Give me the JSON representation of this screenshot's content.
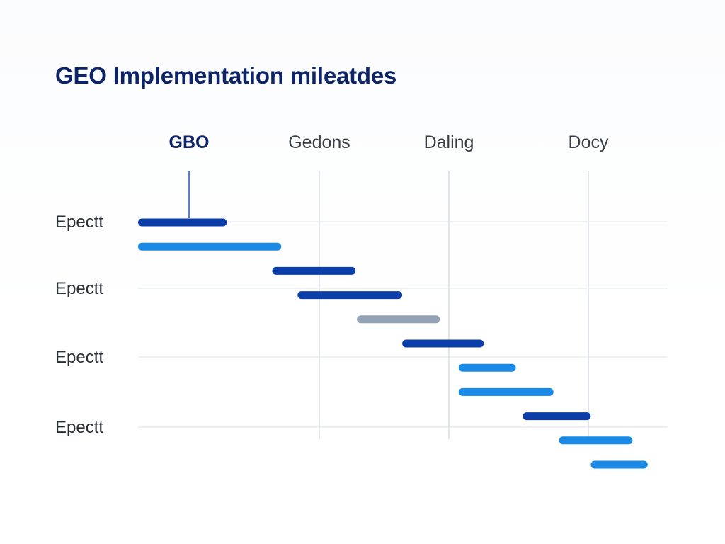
{
  "chart_data": {
    "type": "gantt",
    "title": "GEO Implementation mileatdes",
    "phases": [
      {
        "label": "GBO",
        "highlighted": true
      },
      {
        "label": "Gedons",
        "highlighted": false
      },
      {
        "label": "Daling",
        "highlighted": false
      },
      {
        "label": "Docy",
        "highlighted": false
      }
    ],
    "row_labels": [
      "Epectt",
      "Epectt",
      "Epectt",
      "Epectt"
    ],
    "tasks": [
      {
        "start": 0.0,
        "end": 0.49,
        "color": "#0b3ea8"
      },
      {
        "start": 0.0,
        "end": 0.79,
        "color": "#1a8ae6"
      },
      {
        "start": 0.74,
        "end": 1.28,
        "color": "#0b3ea8"
      },
      {
        "start": 0.88,
        "end": 1.64,
        "color": "#0b3ea8"
      },
      {
        "start": 1.29,
        "end": 1.93,
        "color": "#93a3b5"
      },
      {
        "start": 1.64,
        "end": 2.25,
        "color": "#0b3ea8"
      },
      {
        "start": 2.07,
        "end": 2.48,
        "color": "#1a8ae6"
      },
      {
        "start": 2.07,
        "end": 2.75,
        "color": "#1a8ae6"
      },
      {
        "start": 2.53,
        "end": 3.03,
        "color": "#0b3ea8"
      },
      {
        "start": 2.79,
        "end": 3.55,
        "color": "#1a8ae6"
      },
      {
        "start": 3.03,
        "end": 3.74,
        "color": "#1a8ae6"
      }
    ],
    "x_range": [
      0,
      3.74
    ],
    "grid": true,
    "legend": "none",
    "colors": {
      "highlight_phase": "#0d2466",
      "phase_text": "#3a3f47",
      "dark_blue": "#0b3ea8",
      "light_blue": "#1a8ae6",
      "gray": "#93a3b5",
      "grid": "#e8ecf1"
    }
  }
}
